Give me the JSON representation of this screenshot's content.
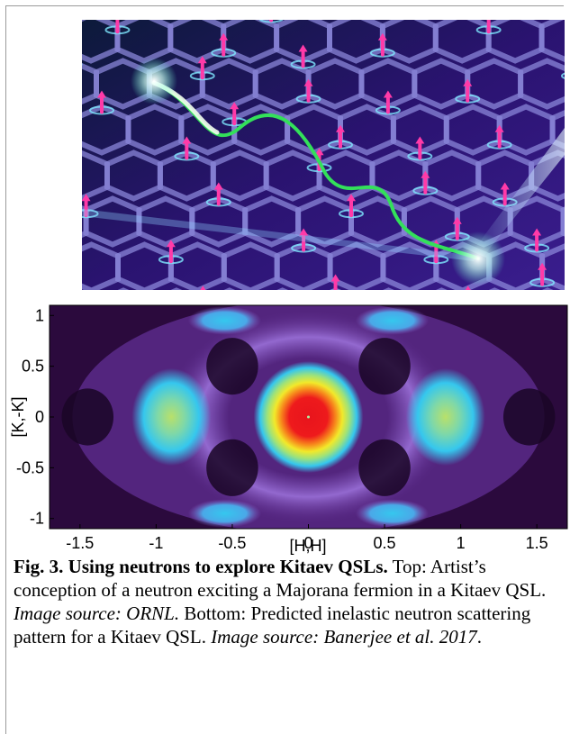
{
  "figure": {
    "caption": {
      "label": "Fig. 3. Using neutrons to explore Kitaev QSLs.",
      "text_1": " Top: Artist’s conception of a neutron exciting a Majorana fermion in a Kitaev QSL. ",
      "source_1": "Image source: ORNL.",
      "text_2": " Bottom: Predicted inelastic neutron scattering pattern for a Kitaev QSL. ",
      "source_2": "Image source: Banerjee et al. 2017",
      "end": "."
    }
  },
  "chart_data": {
    "type": "heatmap",
    "title": "",
    "xlabel": "[H,H]",
    "ylabel": "[K,-K]",
    "xlim": [
      -1.7,
      1.7
    ],
    "ylim": [
      -1.1,
      1.1
    ],
    "xticks": [
      "-1.5",
      "-1",
      "-0.5",
      "0",
      "0.5",
      "1",
      "1.5"
    ],
    "xtick_values": [
      -1.5,
      -1,
      -0.5,
      0,
      0.5,
      1,
      1.5
    ],
    "yticks": [
      "1",
      "0.5",
      "0",
      "-0.5",
      "-1"
    ],
    "ytick_values": [
      1,
      0.5,
      0,
      -0.5,
      -1
    ],
    "grid": false,
    "colormap": [
      "#2b0a3d",
      "#5b2a8a",
      "#8a5fc8",
      "#35c7ee",
      "#9ee27a",
      "#f2e92a",
      "#f78a1c",
      "#e8141c"
    ],
    "features": [
      {
        "name": "central-peak",
        "x": 0,
        "y": 0,
        "intensity": 1.0
      },
      {
        "name": "side-lobe-left",
        "x": -0.9,
        "y": 0,
        "intensity": 0.55
      },
      {
        "name": "side-lobe-right",
        "x": 0.9,
        "y": 0,
        "intensity": 0.55
      },
      {
        "name": "top-spot-left",
        "x": -0.55,
        "y": 0.95,
        "intensity": 0.45
      },
      {
        "name": "top-spot-right",
        "x": 0.55,
        "y": 0.95,
        "intensity": 0.45
      },
      {
        "name": "bottom-spot-left",
        "x": -0.55,
        "y": -0.95,
        "intensity": 0.45
      },
      {
        "name": "bottom-spot-right",
        "x": 0.55,
        "y": -0.95,
        "intensity": 0.45
      }
    ]
  },
  "illustration": {
    "colors": {
      "background": "#2a1370",
      "lattice": "#8a86d8",
      "spin": "#ff3aa8",
      "beam_green": "#33e05a",
      "glow": "#ffffff"
    }
  }
}
